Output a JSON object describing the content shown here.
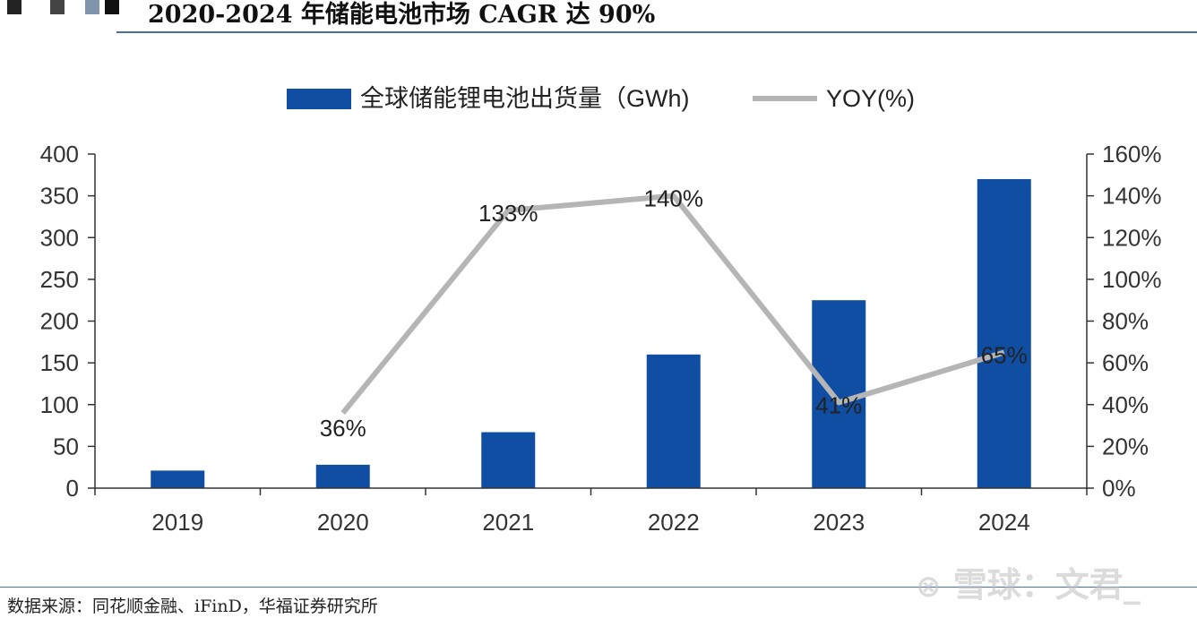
{
  "header": {
    "title": "2020-2024 年储能电池市场 CAGR 达 90%",
    "square_colors": [
      "#222222",
      "#444444",
      "#7f95ad",
      "#111111"
    ]
  },
  "chart_data": {
    "type": "bar",
    "categories": [
      "2019",
      "2020",
      "2021",
      "2022",
      "2023",
      "2024"
    ],
    "series": [
      {
        "name": "全球储能锂电池出货量（GWh)",
        "type": "bar",
        "axis": "left",
        "color": "#0f4ea3",
        "values": [
          21,
          28,
          67,
          160,
          225,
          370
        ]
      },
      {
        "name": "YOY(%)",
        "type": "line",
        "axis": "right",
        "color": "#b5b5b5",
        "values": [
          null,
          36,
          133,
          140,
          41,
          65
        ],
        "labels": [
          "",
          "36%",
          "133%",
          "140%",
          "41%",
          "65%"
        ]
      }
    ],
    "y_left": {
      "lim": [
        0,
        400
      ],
      "ticks": [
        0,
        50,
        100,
        150,
        200,
        250,
        300,
        350,
        400
      ]
    },
    "y_right": {
      "lim": [
        0,
        160
      ],
      "ticks": [
        "0%",
        "20%",
        "40%",
        "60%",
        "80%",
        "100%",
        "120%",
        "140%",
        "160%"
      ]
    },
    "grid": false,
    "legend_position": "top"
  },
  "footer": {
    "source": "数据来源：同花顺金融、iFinD，华福证券研究所",
    "watermark": "雪球：文君_",
    "watermark_icon": "snowball-logo-icon"
  }
}
